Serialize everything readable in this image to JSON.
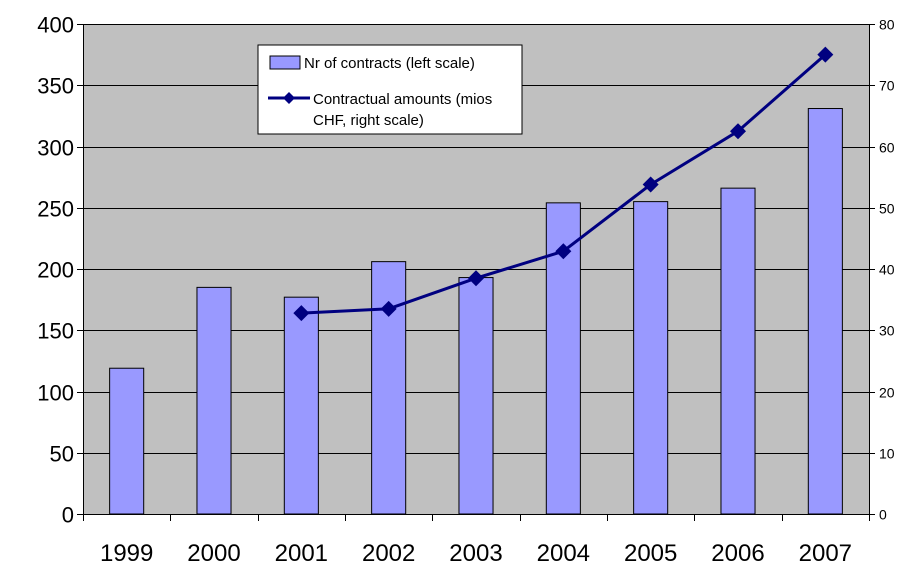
{
  "chart_data": {
    "type": "bar",
    "title": "",
    "categories": [
      "1999",
      "2000",
      "2001",
      "2002",
      "2003",
      "2004",
      "2005",
      "2006",
      "2007"
    ],
    "series": [
      {
        "name": "Nr of contracts (left scale)",
        "type": "bar",
        "axis": "left",
        "color": "#9999ff",
        "values": [
          119,
          185,
          177,
          206,
          193,
          254,
          255,
          266,
          331
        ]
      },
      {
        "name": "Contractual amounts (mios CHF, right scale)",
        "name_lines": [
          "Contractual amounts (mios",
          "CHF, right scale)"
        ],
        "type": "line",
        "axis": "right",
        "color": "#000080",
        "values": [
          null,
          null,
          32.8,
          33.5,
          38.5,
          42.9,
          53.8,
          62.5,
          75.0
        ]
      }
    ],
    "y_left": {
      "min": 0,
      "max": 400,
      "step": 50,
      "ticks": [
        "0",
        "50",
        "100",
        "150",
        "200",
        "250",
        "300",
        "350",
        "400"
      ]
    },
    "y_right": {
      "min": 0,
      "max": 80,
      "step": 10,
      "ticks": [
        "0",
        "10",
        "20",
        "30",
        "40",
        "50",
        "60",
        "70",
        "80"
      ]
    },
    "plot_background": "#c0c0c0",
    "grid": true,
    "legend": "top-center"
  }
}
